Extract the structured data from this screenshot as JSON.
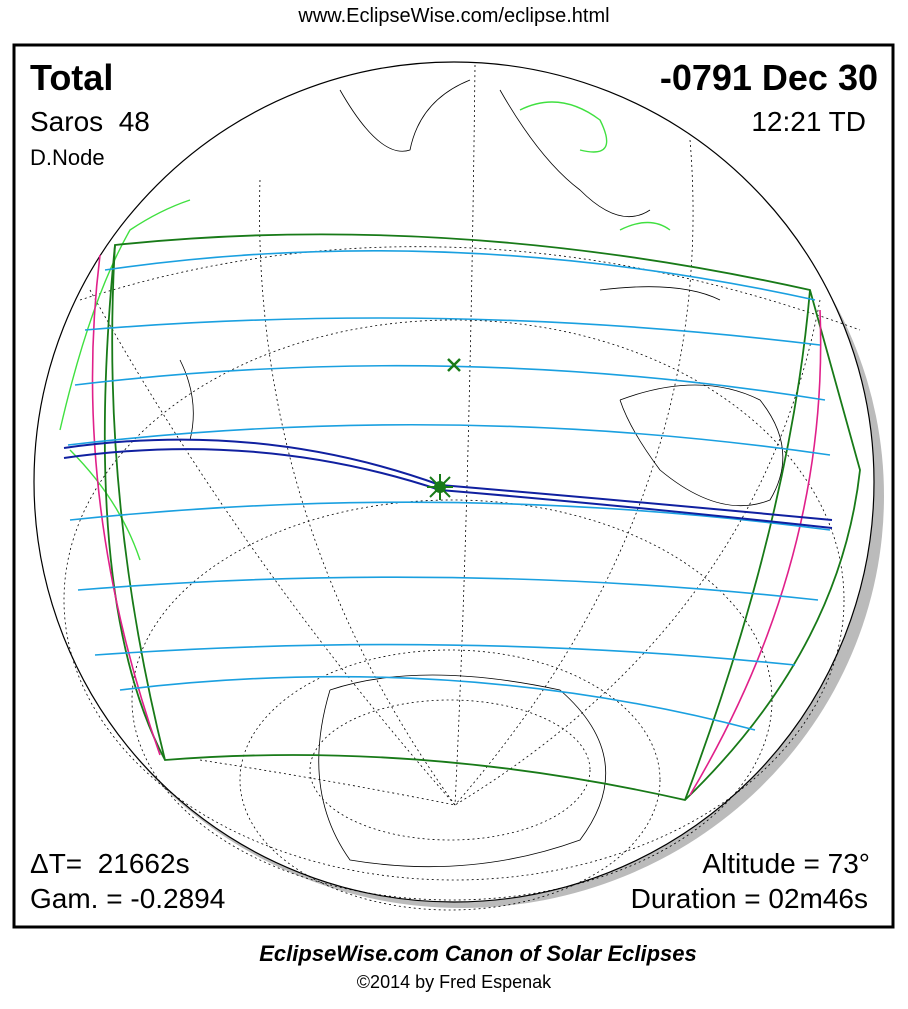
{
  "header": {
    "url": "www.EclipseWise.com/eclipse.html"
  },
  "map": {
    "eclipse_type": "Total",
    "date": "-0791 Dec 30",
    "saros": "Saros  48",
    "time": "12:21 TD",
    "node": "D.Node",
    "delta_t": "ΔT=  21662s",
    "gamma": "Gam. = -0.2894",
    "altitude": "Altitude = 73°",
    "duration": "Duration = 02m46s"
  },
  "footer": {
    "title": "EclipseWise.com Canon of Solar Eclipses",
    "copyright": "©2014 by Fred Espenak"
  }
}
